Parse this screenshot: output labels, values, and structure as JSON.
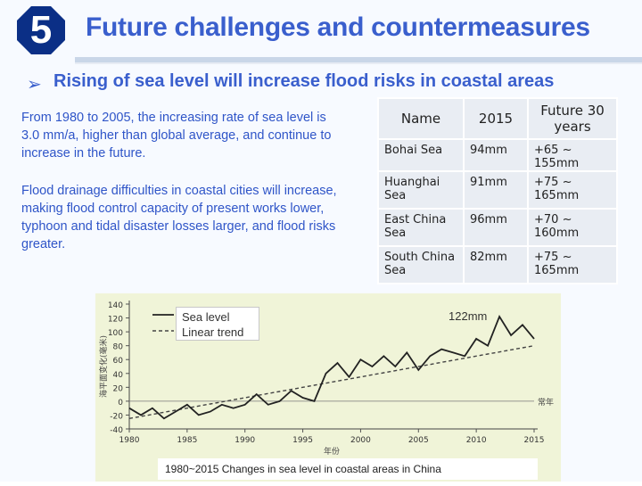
{
  "slide": {
    "section_number": "5",
    "title": "Future challenges and countermeasures",
    "bullet": "Rising of sea level will increase flood risks in coastal areas",
    "paragraph1": "From 1980 to 2005, the increasing rate of sea level is 3.0 mm/a, higher than global average, and continue to increase in the future.",
    "paragraph2": "Flood drainage difficulties in coastal cities will increase, making flood control capacity of present works lower, typhoon and tidal disaster losses larger, and flood risks greater."
  },
  "table": {
    "headers": [
      "Name",
      "2015",
      "Future 30 years"
    ],
    "rows": [
      [
        "Bohai Sea",
        "94mm",
        "+65 ~ 155mm"
      ],
      [
        "Huanghai Sea",
        "91mm",
        "+75 ~ 165mm"
      ],
      [
        "East China Sea",
        "96mm",
        "+70 ~ 160mm"
      ],
      [
        "South China Sea",
        "82mm",
        "+75 ~ 165mm"
      ]
    ]
  },
  "figure": {
    "legend_sea_level": "Sea level",
    "legend_trend": "Linear trend",
    "peak_label": "122mm",
    "caption": "1980~2015 Changes in sea level in coastal areas in China",
    "y_axis_label": "海平面变化(毫米)",
    "x_axis_label": "年份",
    "baseline_label": "常年",
    "x_ticks": [
      "1980",
      "1985",
      "1990",
      "1995",
      "2000",
      "2005",
      "2010",
      "2015"
    ],
    "y_ticks": [
      "140",
      "120",
      "100",
      "80",
      "60",
      "40",
      "20",
      "0",
      "-20",
      "-40"
    ]
  },
  "chart_data": {
    "type": "line",
    "x": [
      1980,
      1981,
      1982,
      1983,
      1984,
      1985,
      1986,
      1987,
      1988,
      1989,
      1990,
      1991,
      1992,
      1993,
      1994,
      1995,
      1996,
      1997,
      1998,
      1999,
      2000,
      2001,
      2002,
      2003,
      2004,
      2005,
      2006,
      2007,
      2008,
      2009,
      2010,
      2011,
      2012,
      2013,
      2014,
      2015
    ],
    "series": [
      {
        "name": "Sea level",
        "values": [
          -10,
          -20,
          -10,
          -25,
          -15,
          -5,
          -20,
          -15,
          -5,
          -10,
          -5,
          10,
          -5,
          0,
          15,
          5,
          0,
          40,
          55,
          35,
          60,
          50,
          65,
          50,
          70,
          45,
          65,
          75,
          70,
          65,
          90,
          80,
          122,
          95,
          110,
          90
        ]
      },
      {
        "name": "Linear trend",
        "values": [
          -25,
          -22,
          -19,
          -16,
          -13,
          -10,
          -7,
          -4,
          -1,
          2,
          5,
          8,
          11,
          14,
          17,
          20,
          23,
          26,
          29,
          32,
          35,
          38,
          41,
          44,
          47,
          50,
          53,
          56,
          59,
          62,
          65,
          68,
          71,
          74,
          77,
          80
        ]
      }
    ],
    "ylim": [
      -40,
      140
    ],
    "xlim": [
      1980,
      2015
    ],
    "xlabel": "年份",
    "ylabel": "海平面变化(毫米)",
    "legend": "top-left",
    "colors": {
      "sea_level": "#222222",
      "trend": "#444444",
      "background": "#f0f4d8"
    }
  }
}
